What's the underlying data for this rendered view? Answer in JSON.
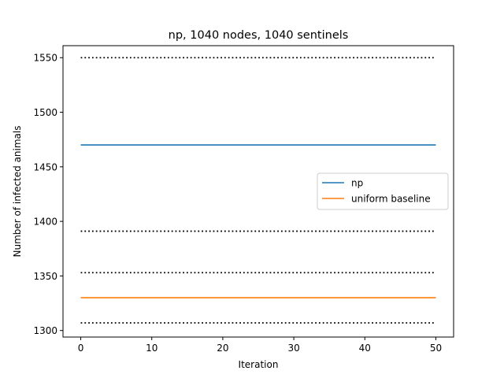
{
  "chart_data": {
    "type": "line",
    "title": "np, 1040 nodes, 1040 sentinels",
    "xlabel": "Iteration",
    "ylabel": "Number of infected animals",
    "xlim": [
      -2.5,
      52.5
    ],
    "ylim": [
      1294,
      1561
    ],
    "xticks": [
      0,
      10,
      20,
      30,
      40,
      50
    ],
    "yticks": [
      1300,
      1350,
      1400,
      1450,
      1500,
      1550
    ],
    "x": [
      0,
      50
    ],
    "series": [
      {
        "name": "np",
        "values": [
          1470,
          1470
        ],
        "color": "#1f77b4",
        "style": "solid",
        "legend": true
      },
      {
        "name": "uniform baseline",
        "values": [
          1330,
          1330
        ],
        "color": "#ff7f0e",
        "style": "solid",
        "legend": true
      },
      {
        "name": "",
        "values": [
          1550,
          1550
        ],
        "color": "#000000",
        "style": "dotted",
        "legend": false
      },
      {
        "name": "",
        "values": [
          1391,
          1391
        ],
        "color": "#000000",
        "style": "dotted",
        "legend": false
      },
      {
        "name": "",
        "values": [
          1353,
          1353
        ],
        "color": "#000000",
        "style": "dotted",
        "legend": false
      },
      {
        "name": "",
        "values": [
          1307,
          1307
        ],
        "color": "#000000",
        "style": "dotted",
        "legend": false
      }
    ],
    "legend_position": "center-right",
    "grid": false
  }
}
